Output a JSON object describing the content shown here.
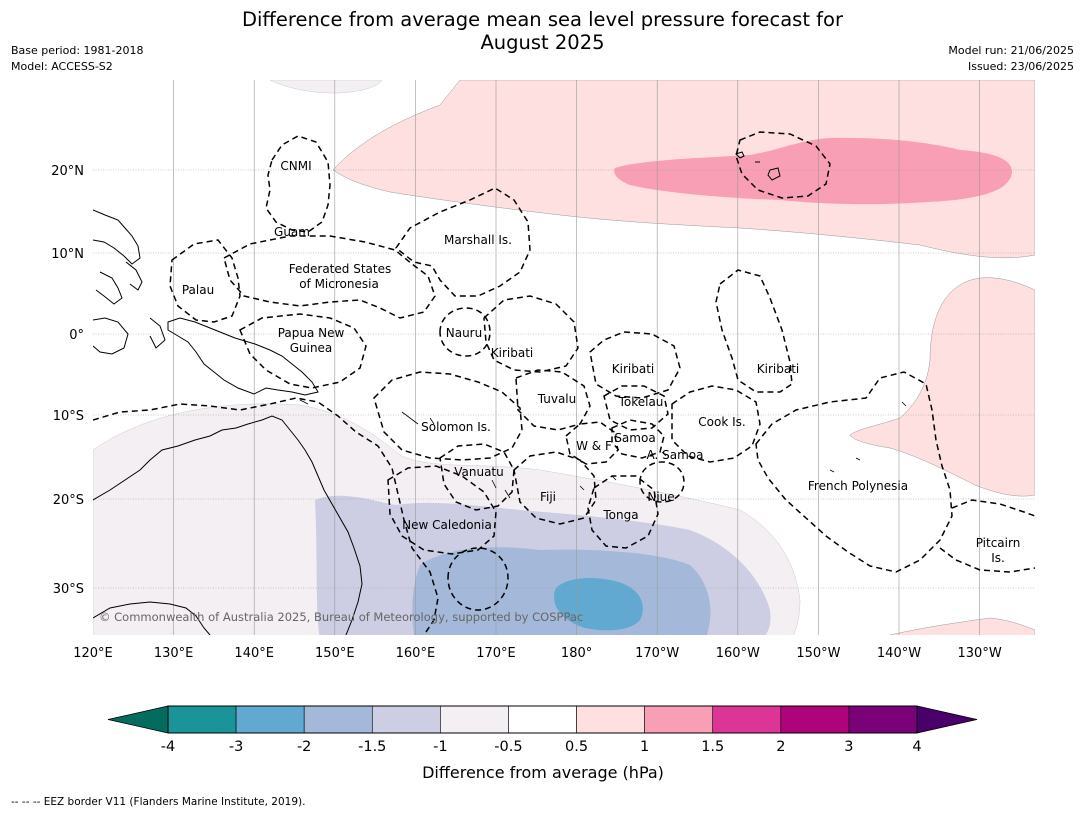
{
  "title_line1": "Difference from average mean sea level pressure forecast for",
  "title_line2": "August 2025",
  "meta_left": [
    "Base period: 1981-2018",
    "Model: ACCESS-S2"
  ],
  "meta_right": [
    "Model run: 21/06/2025",
    "Issued: 23/06/2025"
  ],
  "copyright": "© Commonwealth of Australia 2025, Bureau of Meteorology, supported by COSPPac",
  "lat_labels": [
    "20°N",
    "10°N",
    "0°",
    "10°S",
    "20°S",
    "30°S"
  ],
  "lon_labels": [
    "120°E",
    "130°E",
    "140°E",
    "150°E",
    "160°E",
    "170°E",
    "180°",
    "170°W",
    "160°W",
    "150°W",
    "140°W",
    "130°W"
  ],
  "regions": [
    "CNMI",
    "Guam",
    "Marshall Is.",
    "Palau",
    "Federated States",
    "of Micronesia",
    "Papua New",
    "Guinea",
    "Nauru",
    "Kiribati",
    "Kiribati",
    "Kiribati",
    "Tuvalu",
    "Tokelau",
    "Solomon Is.",
    "Cook Is.",
    "W & F",
    "Samoa",
    "A. Samoa",
    "Vanuatu",
    "Fiji",
    "Niue",
    "French Polynesia",
    "Tonga",
    "New Caledonia",
    "Pitcairn",
    "Is."
  ],
  "colorbar": {
    "label": "Difference from average (hPa)",
    "ticks": [
      "-4",
      "-3",
      "-2",
      "-1.5",
      "-1",
      "-0.5",
      "0.5",
      "1",
      "1.5",
      "2",
      "3",
      "4"
    ],
    "colors": [
      "#1a9499",
      "#62a9d2",
      "#a4b9d9",
      "#cdcde3",
      "#f3eff3",
      "#ffffff",
      "#fde0df",
      "#f89eb5",
      "#dd3596",
      "#ae037a",
      "#7a0177"
    ],
    "under_color": "#036c5f",
    "over_color": "#49006a"
  },
  "footnote": "--  --  -- EEZ border V11 (Flanders Marine Institute, 2019)."
}
